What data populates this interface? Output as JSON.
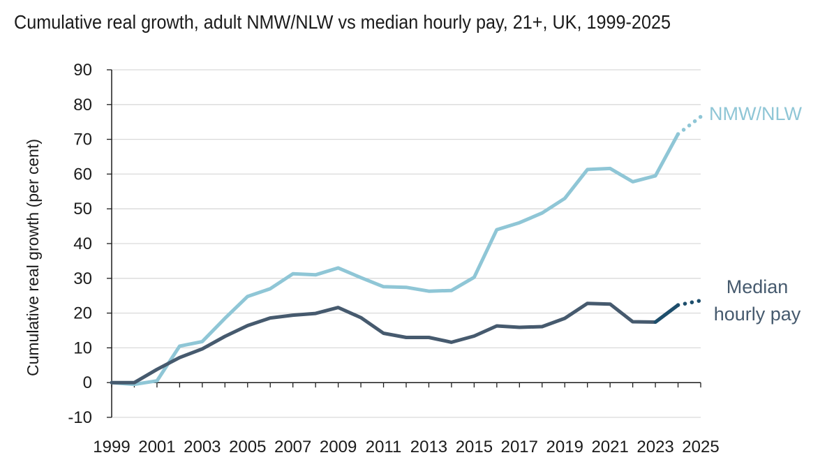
{
  "chart_data": {
    "type": "line",
    "title": "Cumulative real growth, adult NMW/NLW vs median hourly pay, 21+, UK, 1999-2025",
    "xlabel": "",
    "ylabel": "Cumulative real growth (per cent)",
    "ylim": [
      -10,
      90
    ],
    "yticks": [
      -10,
      0,
      10,
      20,
      30,
      40,
      50,
      60,
      70,
      80,
      90
    ],
    "xticks": [
      "1999",
      "2001",
      "2003",
      "2005",
      "2007",
      "2009",
      "2011",
      "2013",
      "2015",
      "2017",
      "2019",
      "2021",
      "2023",
      "2025"
    ],
    "grid": "horizontal",
    "legend": "direct labels at right",
    "series": [
      {
        "name": "NMW/NLW",
        "color": "#8fc6d6",
        "x": [
          1999,
          2000,
          2001,
          2002,
          2003,
          2004,
          2005,
          2006,
          2007,
          2008,
          2009,
          2010,
          2011,
          2012,
          2013,
          2014,
          2015,
          2016,
          2017,
          2018,
          2019,
          2020,
          2021,
          2022,
          2023,
          2024
        ],
        "values": [
          0,
          -0.5,
          0.5,
          10.5,
          11.8,
          18.5,
          24.8,
          27.0,
          31.3,
          31.0,
          33.0,
          30.2,
          27.6,
          27.4,
          26.3,
          26.5,
          30.3,
          44.0,
          46.0,
          48.8,
          53.0,
          61.3,
          61.6,
          57.8,
          59.5,
          71.5
        ],
        "projection": {
          "x": [
            2024,
            2025
          ],
          "values": [
            71.5,
            76.5
          ]
        }
      },
      {
        "name": "Median hourly pay",
        "color": "#465a6e",
        "latest_color": "#1d4e6c",
        "x": [
          1999,
          2000,
          2001,
          2002,
          2003,
          2004,
          2005,
          2006,
          2007,
          2008,
          2009,
          2010,
          2011,
          2012,
          2013,
          2014,
          2015,
          2016,
          2017,
          2018,
          2019,
          2020,
          2021,
          2022,
          2023,
          2024
        ],
        "values": [
          0,
          0,
          3.8,
          7.2,
          9.7,
          13.3,
          16.4,
          18.6,
          19.4,
          19.9,
          21.6,
          18.7,
          14.2,
          13.0,
          13.0,
          11.6,
          13.4,
          16.3,
          15.9,
          16.1,
          18.5,
          22.8,
          22.6,
          17.5,
          17.4,
          22.3
        ],
        "projection": {
          "x": [
            2024,
            2025
          ],
          "values": [
            22.3,
            23.6
          ]
        }
      }
    ],
    "annotations": [
      {
        "series": "NMW/NLW",
        "text": "NMW/NLW"
      },
      {
        "series": "Median hourly pay",
        "lines": [
          "Median",
          "hourly pay"
        ]
      }
    ]
  }
}
